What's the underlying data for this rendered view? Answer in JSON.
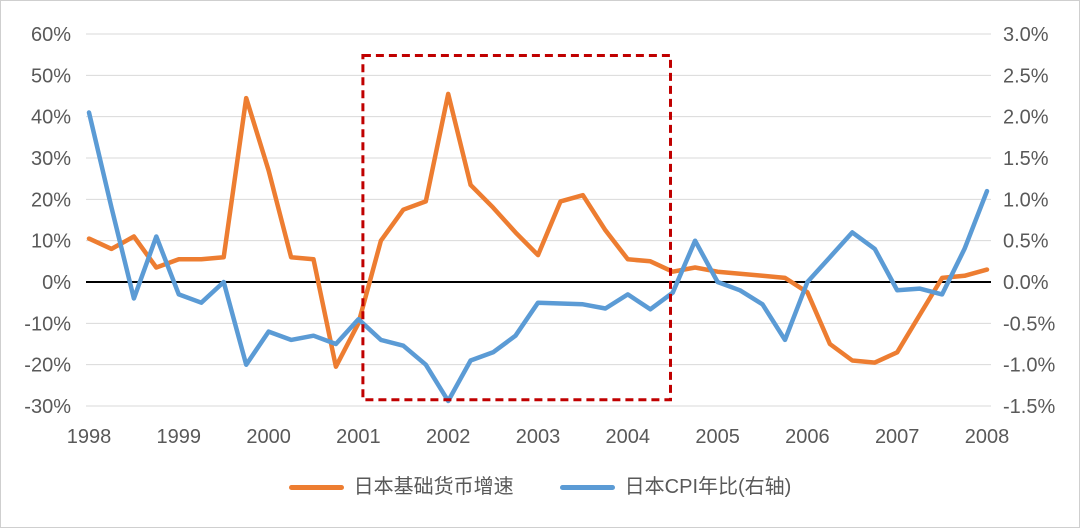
{
  "chart_data": {
    "type": "line",
    "title": "",
    "x_tick_labels": [
      "1998",
      "1999",
      "2000",
      "2001",
      "2002",
      "2003",
      "2004",
      "2005",
      "2006",
      "2007",
      "2008"
    ],
    "categories": [
      "1998Q1",
      "1998Q2",
      "1998Q3",
      "1998Q4",
      "1999Q1",
      "1999Q2",
      "1999Q3",
      "1999Q4",
      "2000Q1",
      "2000Q2",
      "2000Q3",
      "2000Q4",
      "2001Q1",
      "2001Q2",
      "2001Q3",
      "2001Q4",
      "2002Q1",
      "2002Q2",
      "2002Q3",
      "2002Q4",
      "2003Q1",
      "2003Q2",
      "2003Q3",
      "2003Q4",
      "2004Q1",
      "2004Q2",
      "2004Q3",
      "2004Q4",
      "2005Q1",
      "2005Q2",
      "2005Q3",
      "2005Q4",
      "2006Q1",
      "2006Q2",
      "2006Q3",
      "2006Q4",
      "2007Q1",
      "2007Q2",
      "2007Q3",
      "2007Q4",
      "2008Q1"
    ],
    "series": [
      {
        "name": "日本基础货币增速",
        "axis": "left",
        "color": "#ED7D31",
        "values": [
          10.5,
          8,
          11,
          3.5,
          5.5,
          5.5,
          6,
          44.5,
          27,
          6,
          5.5,
          -20.5,
          -10,
          10,
          17.5,
          19.5,
          45.5,
          23.5,
          18,
          12,
          6.5,
          19.5,
          21,
          12.5,
          5.5,
          5,
          2.5,
          3.5,
          2.5,
          2,
          1.5,
          1,
          -2.5,
          -15,
          -19,
          -19.5,
          -17,
          -8,
          1,
          1.5,
          3
        ]
      },
      {
        "name": "日本CPI年比(右轴)",
        "axis": "right",
        "color": "#5B9BD5",
        "values": [
          2.05,
          0.9,
          -0.2,
          0.55,
          -0.15,
          -0.25,
          0.0,
          -1.0,
          -0.6,
          -0.7,
          -0.65,
          -0.75,
          -0.45,
          -0.7,
          -0.77,
          -1.0,
          -1.44,
          -0.95,
          -0.85,
          -0.65,
          -0.25,
          -0.26,
          -0.27,
          -0.32,
          -0.15,
          -0.33,
          -0.13,
          0.5,
          0.0,
          -0.1,
          -0.27,
          -0.7,
          0.0,
          0.3,
          0.6,
          0.4,
          -0.1,
          -0.08,
          -0.15,
          0.4,
          1.1
        ]
      }
    ],
    "left_axis": {
      "ticks": [
        "60%",
        "50%",
        "40%",
        "30%",
        "20%",
        "10%",
        "0%",
        "-10%",
        "-20%",
        "-30%"
      ],
      "tick_values": [
        60,
        50,
        40,
        30,
        20,
        10,
        0,
        -10,
        -20,
        -30
      ],
      "range": [
        -30,
        60
      ]
    },
    "right_axis": {
      "ticks": [
        "3.0%",
        "2.5%",
        "2.0%",
        "1.5%",
        "1.0%",
        "0.5%",
        "0.0%",
        "-0.5%",
        "-1.0%",
        "-1.5%"
      ],
      "tick_values": [
        3.0,
        2.5,
        2.0,
        1.5,
        1.0,
        0.5,
        0.0,
        -0.5,
        -1.0,
        -1.5
      ],
      "range": [
        -1.5,
        3.0
      ]
    },
    "right_to_left_scale": 20,
    "grid": {
      "color": "#d9d9d9",
      "zero_line_color": "#000000"
    },
    "text_color": "#595959",
    "highlight_box": {
      "color": "#C00000",
      "x_from_index": 12.2,
      "x_to_index": 25.9,
      "y_top_left_axis": 54.8,
      "y_bottom_left_axis": -28.5
    },
    "legend": [
      {
        "label": "日本基础货币增速",
        "color": "#ED7D31"
      },
      {
        "label": "日本CPI年比(右轴)",
        "color": "#5B9BD5"
      }
    ]
  }
}
